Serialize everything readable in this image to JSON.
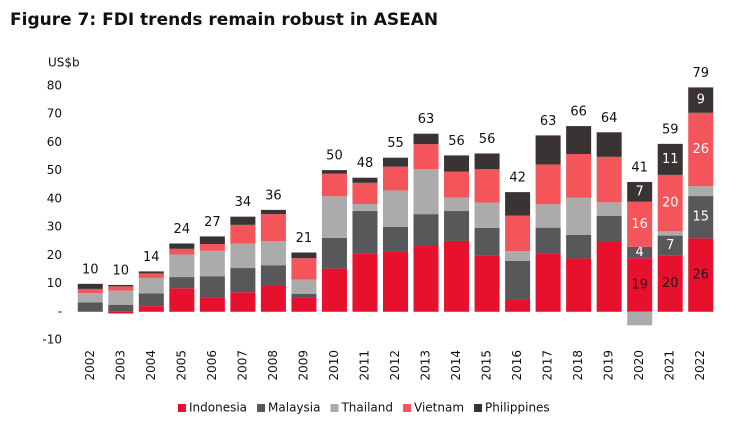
{
  "chart_data": {
    "type": "stacked_bar",
    "title": "Figure 7: FDI trends remain robust in ASEAN",
    "y_unit": "US$b",
    "categories": [
      "2002",
      "2003",
      "2004",
      "2005",
      "2006",
      "2007",
      "2008",
      "2009",
      "2010",
      "2011",
      "2012",
      "2013",
      "2014",
      "2015",
      "2016",
      "2017",
      "2018",
      "2019",
      "2020",
      "2021",
      "2022"
    ],
    "series": [
      {
        "name": "Indonesia",
        "color": "#e8112d",
        "label_color": "#1a1a1a",
        "values": [
          0.1,
          -0.6,
          2,
          8.3,
          4.9,
          6.9,
          9.3,
          4.9,
          15.3,
          20.6,
          21.2,
          23.3,
          25.1,
          19.8,
          4.5,
          20.5,
          18.9,
          24.9,
          19,
          20,
          26
        ],
        "value_labels": [
          null,
          null,
          null,
          null,
          null,
          null,
          null,
          null,
          null,
          null,
          null,
          null,
          null,
          null,
          null,
          null,
          null,
          null,
          "19",
          "20",
          "26"
        ]
      },
      {
        "name": "Malaysia",
        "color": "#58585a",
        "label_color": "#ffffff",
        "values": [
          3.2,
          2.5,
          4.5,
          4,
          7.7,
          8.6,
          7.2,
          1.5,
          10.9,
          15.1,
          8.9,
          11.3,
          10.6,
          9.9,
          13.5,
          9.3,
          8.3,
          9.1,
          4,
          7,
          15
        ],
        "value_labels": [
          null,
          null,
          null,
          null,
          null,
          null,
          null,
          null,
          null,
          null,
          null,
          null,
          null,
          null,
          null,
          null,
          null,
          null,
          "4",
          "7",
          "15"
        ]
      },
      {
        "name": "Thailand",
        "color": "#ababab",
        "values": [
          3.3,
          5,
          5.5,
          8,
          9,
          8.6,
          8.5,
          5,
          14.7,
          2.5,
          12.9,
          15.9,
          4.8,
          9,
          3.5,
          8.3,
          13.2,
          4.8,
          -4.8,
          1.5,
          3.5
        ]
      },
      {
        "name": "Vietnam",
        "color": "#f4555b",
        "label_color": "#ffffff",
        "values": [
          1.5,
          1.5,
          1.6,
          2,
          2.4,
          6.7,
          9.6,
          7.6,
          8,
          7.5,
          8.4,
          8.9,
          9.2,
          11.8,
          12.6,
          14.1,
          15.5,
          16.1,
          16,
          20,
          26
        ],
        "value_labels": [
          null,
          null,
          null,
          null,
          null,
          null,
          null,
          null,
          null,
          null,
          null,
          null,
          null,
          null,
          null,
          null,
          null,
          null,
          "16",
          "20",
          "26"
        ]
      },
      {
        "name": "Philippines",
        "color": "#3a3333",
        "label_color": "#ffffff",
        "values": [
          1.8,
          0.5,
          0.7,
          1.9,
          2.7,
          2.9,
          1.5,
          2,
          1.3,
          1.8,
          3.2,
          3.7,
          5.7,
          5.6,
          8.3,
          10.3,
          9.9,
          8.7,
          7,
          11,
          9
        ],
        "value_labels": [
          null,
          null,
          null,
          null,
          null,
          null,
          null,
          null,
          null,
          null,
          null,
          null,
          null,
          null,
          null,
          null,
          null,
          null,
          "7",
          "11",
          "9"
        ]
      }
    ],
    "totals": [
      10,
      10,
      14,
      24,
      27,
      34,
      36,
      21,
      50,
      48,
      55,
      63,
      56,
      56,
      42,
      63,
      66,
      64,
      41,
      59,
      79
    ],
    "ylim": [
      -10,
      80
    ],
    "yticks": [
      -10,
      {
        "value": 0,
        "label": "-"
      },
      10,
      20,
      30,
      40,
      50,
      60,
      70,
      80
    ],
    "legend": "bottom"
  }
}
